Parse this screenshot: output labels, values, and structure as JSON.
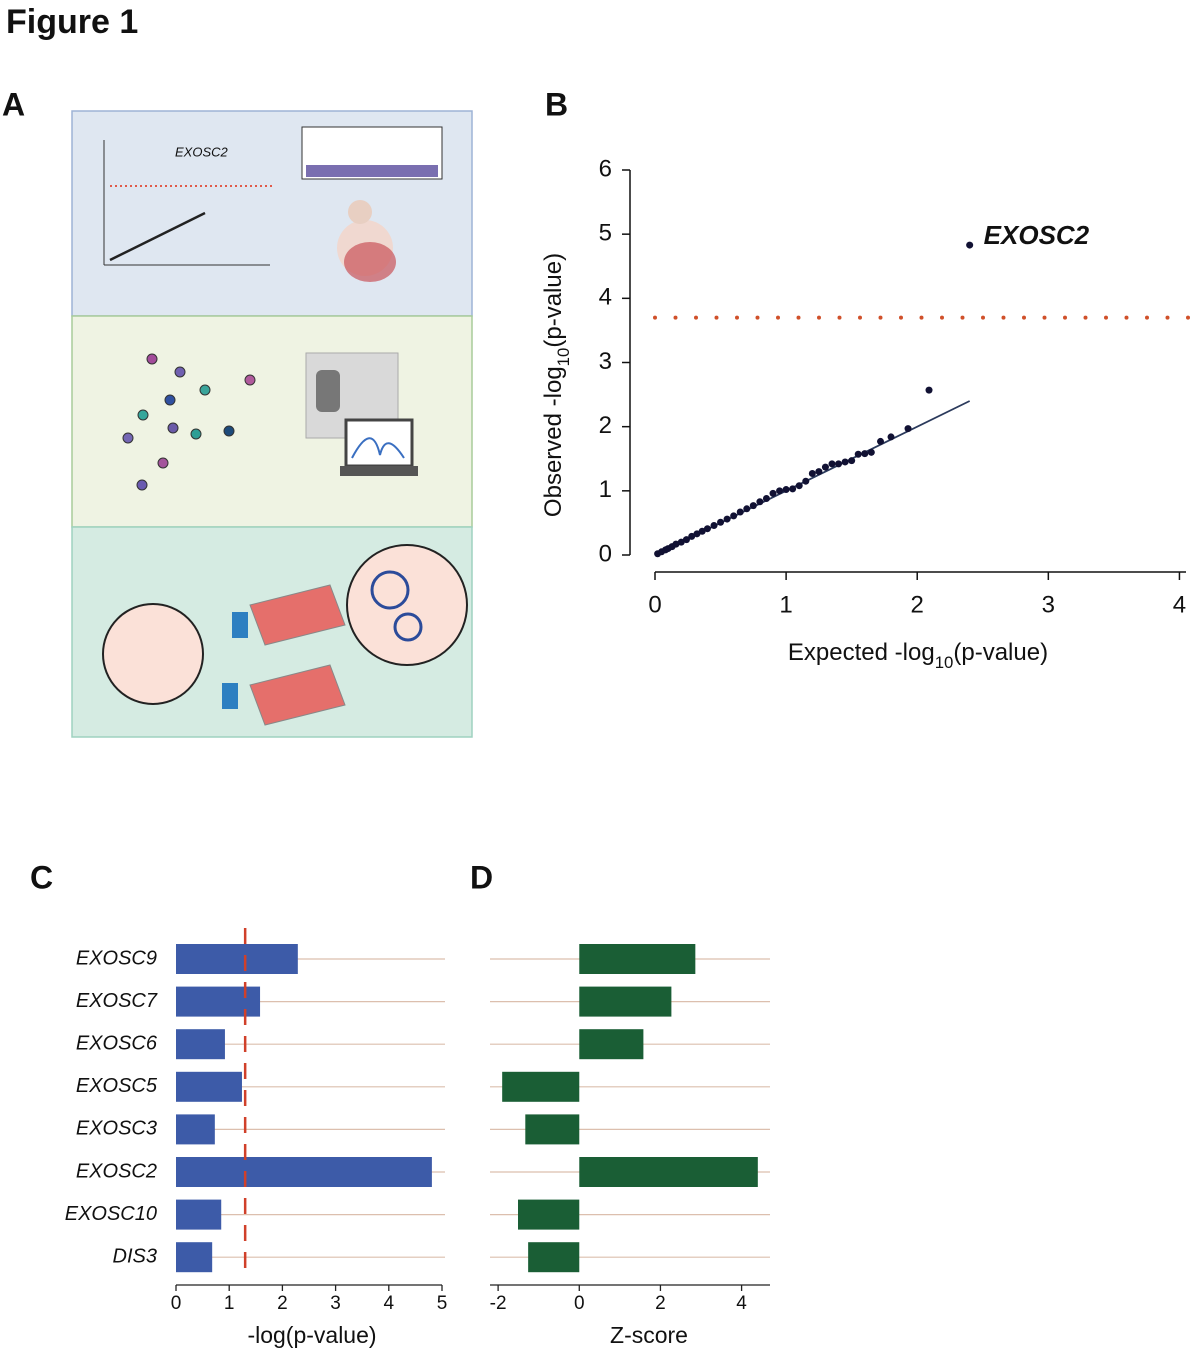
{
  "figure_title": "Figure 1",
  "panel_a": {
    "label": "A",
    "inset_text": "EXOSC2"
  },
  "chart_data": [
    {
      "type": "scatter",
      "panel_label": "B",
      "xlabel": {
        "text": "Expected -log",
        "subscript": "10",
        "suffix": "(p-value)"
      },
      "ylabel": {
        "text": "Observed -log",
        "subscript": "10",
        "suffix": "(p-value)"
      },
      "x": [
        0.02,
        0.05,
        0.08,
        0.1,
        0.13,
        0.16,
        0.2,
        0.24,
        0.28,
        0.32,
        0.36,
        0.4,
        0.45,
        0.5,
        0.55,
        0.6,
        0.65,
        0.7,
        0.75,
        0.8,
        0.85,
        0.9,
        0.95,
        1.0,
        1.05,
        1.1,
        1.15,
        1.2,
        1.25,
        1.3,
        1.35,
        1.4,
        1.45,
        1.5,
        1.55,
        1.6,
        1.65,
        1.72,
        1.8,
        1.93,
        2.09,
        2.4
      ],
      "y": [
        0.02,
        0.05,
        0.08,
        0.1,
        0.13,
        0.17,
        0.2,
        0.24,
        0.29,
        0.33,
        0.37,
        0.41,
        0.46,
        0.51,
        0.56,
        0.61,
        0.67,
        0.72,
        0.77,
        0.83,
        0.88,
        0.96,
        1.0,
        1.02,
        1.03,
        1.08,
        1.15,
        1.27,
        1.3,
        1.37,
        1.42,
        1.42,
        1.45,
        1.47,
        1.57,
        1.58,
        1.6,
        1.77,
        1.84,
        1.97,
        2.57,
        4.83
      ],
      "color": "#111133",
      "annotation": "EXOSC2",
      "reference_line": {
        "x": [
          0,
          2.4
        ],
        "y": [
          0,
          2.4
        ],
        "color": "#2b3a5c"
      },
      "threshold": 3.7,
      "threshold_color": "#d0502a",
      "xlim": [
        0,
        4.05
      ],
      "xticks": [
        0,
        1,
        2,
        3,
        4
      ],
      "ylim": [
        0,
        6
      ],
      "yticks": [
        0,
        1,
        2,
        3,
        4,
        5,
        6
      ]
    },
    {
      "type": "bar",
      "orientation": "horizontal",
      "panel_label": "C",
      "categories": [
        "EXOSC9",
        "EXOSC7",
        "EXOSC6",
        "EXOSC5",
        "EXOSC3",
        "EXOSC2",
        "EXOSC10",
        "DIS3"
      ],
      "values": [
        2.29,
        1.58,
        0.92,
        1.24,
        0.73,
        4.81,
        0.85,
        0.68
      ],
      "color": "#3d5ba8",
      "threshold": 1.3,
      "threshold_color": "#d0402a",
      "xlabel": "-log(p-value)",
      "xlim": [
        0,
        5
      ],
      "xticks": [
        0,
        1,
        2,
        3,
        4,
        5
      ]
    },
    {
      "type": "bar",
      "orientation": "horizontal",
      "panel_label": "D",
      "values": [
        2.86,
        2.27,
        1.58,
        -1.9,
        -1.33,
        4.4,
        -1.51,
        -1.26
      ],
      "color": "#1a5e35",
      "xlabel": "Z-score",
      "xlim": [
        -2.2,
        4.7
      ],
      "xticks": [
        -2,
        0,
        2,
        4
      ]
    }
  ]
}
